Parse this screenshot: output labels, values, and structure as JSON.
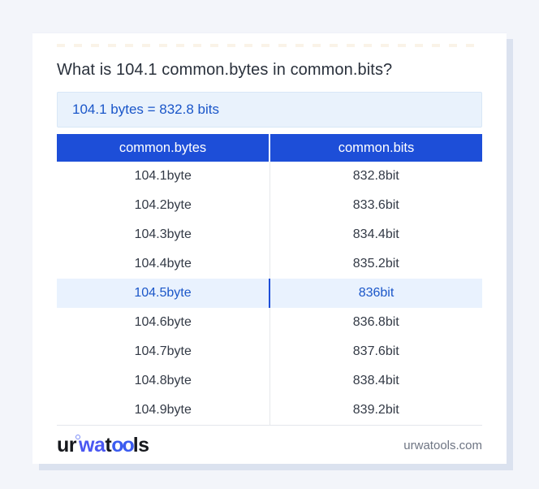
{
  "title": "What is 104.1 common.bytes in common.bits?",
  "result_text": "104.1 bytes = 832.8 bits",
  "table": {
    "headers": [
      "common.bytes",
      "common.bits"
    ],
    "rows": [
      {
        "bytes": "104.1byte",
        "bits": "832.8bit",
        "highlighted": false
      },
      {
        "bytes": "104.2byte",
        "bits": "833.6bit",
        "highlighted": false
      },
      {
        "bytes": "104.3byte",
        "bits": "834.4bit",
        "highlighted": false
      },
      {
        "bytes": "104.4byte",
        "bits": "835.2bit",
        "highlighted": false
      },
      {
        "bytes": "104.5byte",
        "bits": "836bit",
        "highlighted": true
      },
      {
        "bytes": "104.6byte",
        "bits": "836.8bit",
        "highlighted": false
      },
      {
        "bytes": "104.7byte",
        "bits": "837.6bit",
        "highlighted": false
      },
      {
        "bytes": "104.8byte",
        "bits": "838.4bit",
        "highlighted": false
      },
      {
        "bytes": "104.9byte",
        "bits": "839.2bit",
        "highlighted": false
      }
    ]
  },
  "footer": {
    "logo": {
      "part1": "ur",
      "part2": "wa",
      "part3": "t",
      "part4": "oo",
      "part5": "ls"
    },
    "site": "urwatools.com"
  },
  "colors": {
    "page_background": "#f3f5fa",
    "card_background": "#ffffff",
    "header_blue": "#1d4ed8",
    "result_box_background": "#e9f2fc",
    "result_text_blue": "#1a56c9",
    "highlight_row_background": "#e9f2fe",
    "highlight_text_blue": "#1b57c9",
    "row_text": "#333a46",
    "footer_site_gray": "#6e7583",
    "logo_blue": "#4a57f2"
  }
}
